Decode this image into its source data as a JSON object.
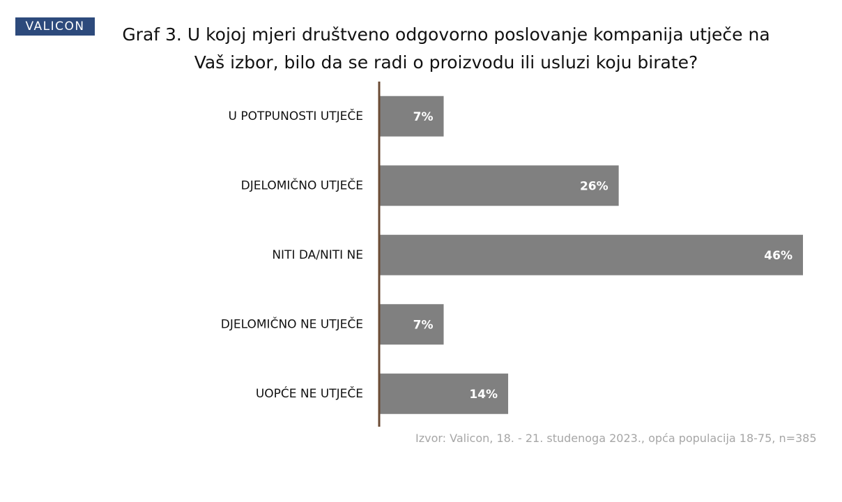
{
  "chart_data": {
    "type": "hbar",
    "title": "Graf 3. U kojoj mjeri društveno odgovorno poslovanje kompanija utječe na Vaš izbor, bilo da se radi o proizvodu ili usluzi koju birate?",
    "brand": "VALICON",
    "source": "Izvor: Valicon, 18. - 21. studenoga 2023., opća populacija 18-75, n=385",
    "categories": [
      "U POTPUNOSTI UTJEČE",
      "DJELOMIČNO UTJEČE",
      "NITI DA/NITI NE",
      "DJELOMIČNO NE UTJEČE",
      "UOPĆE NE UTJEČE"
    ],
    "values": [
      7,
      26,
      46,
      7,
      14
    ],
    "value_labels": [
      "7%",
      "26%",
      "46%",
      "7%",
      "14%"
    ],
    "color": "#808080"
  }
}
